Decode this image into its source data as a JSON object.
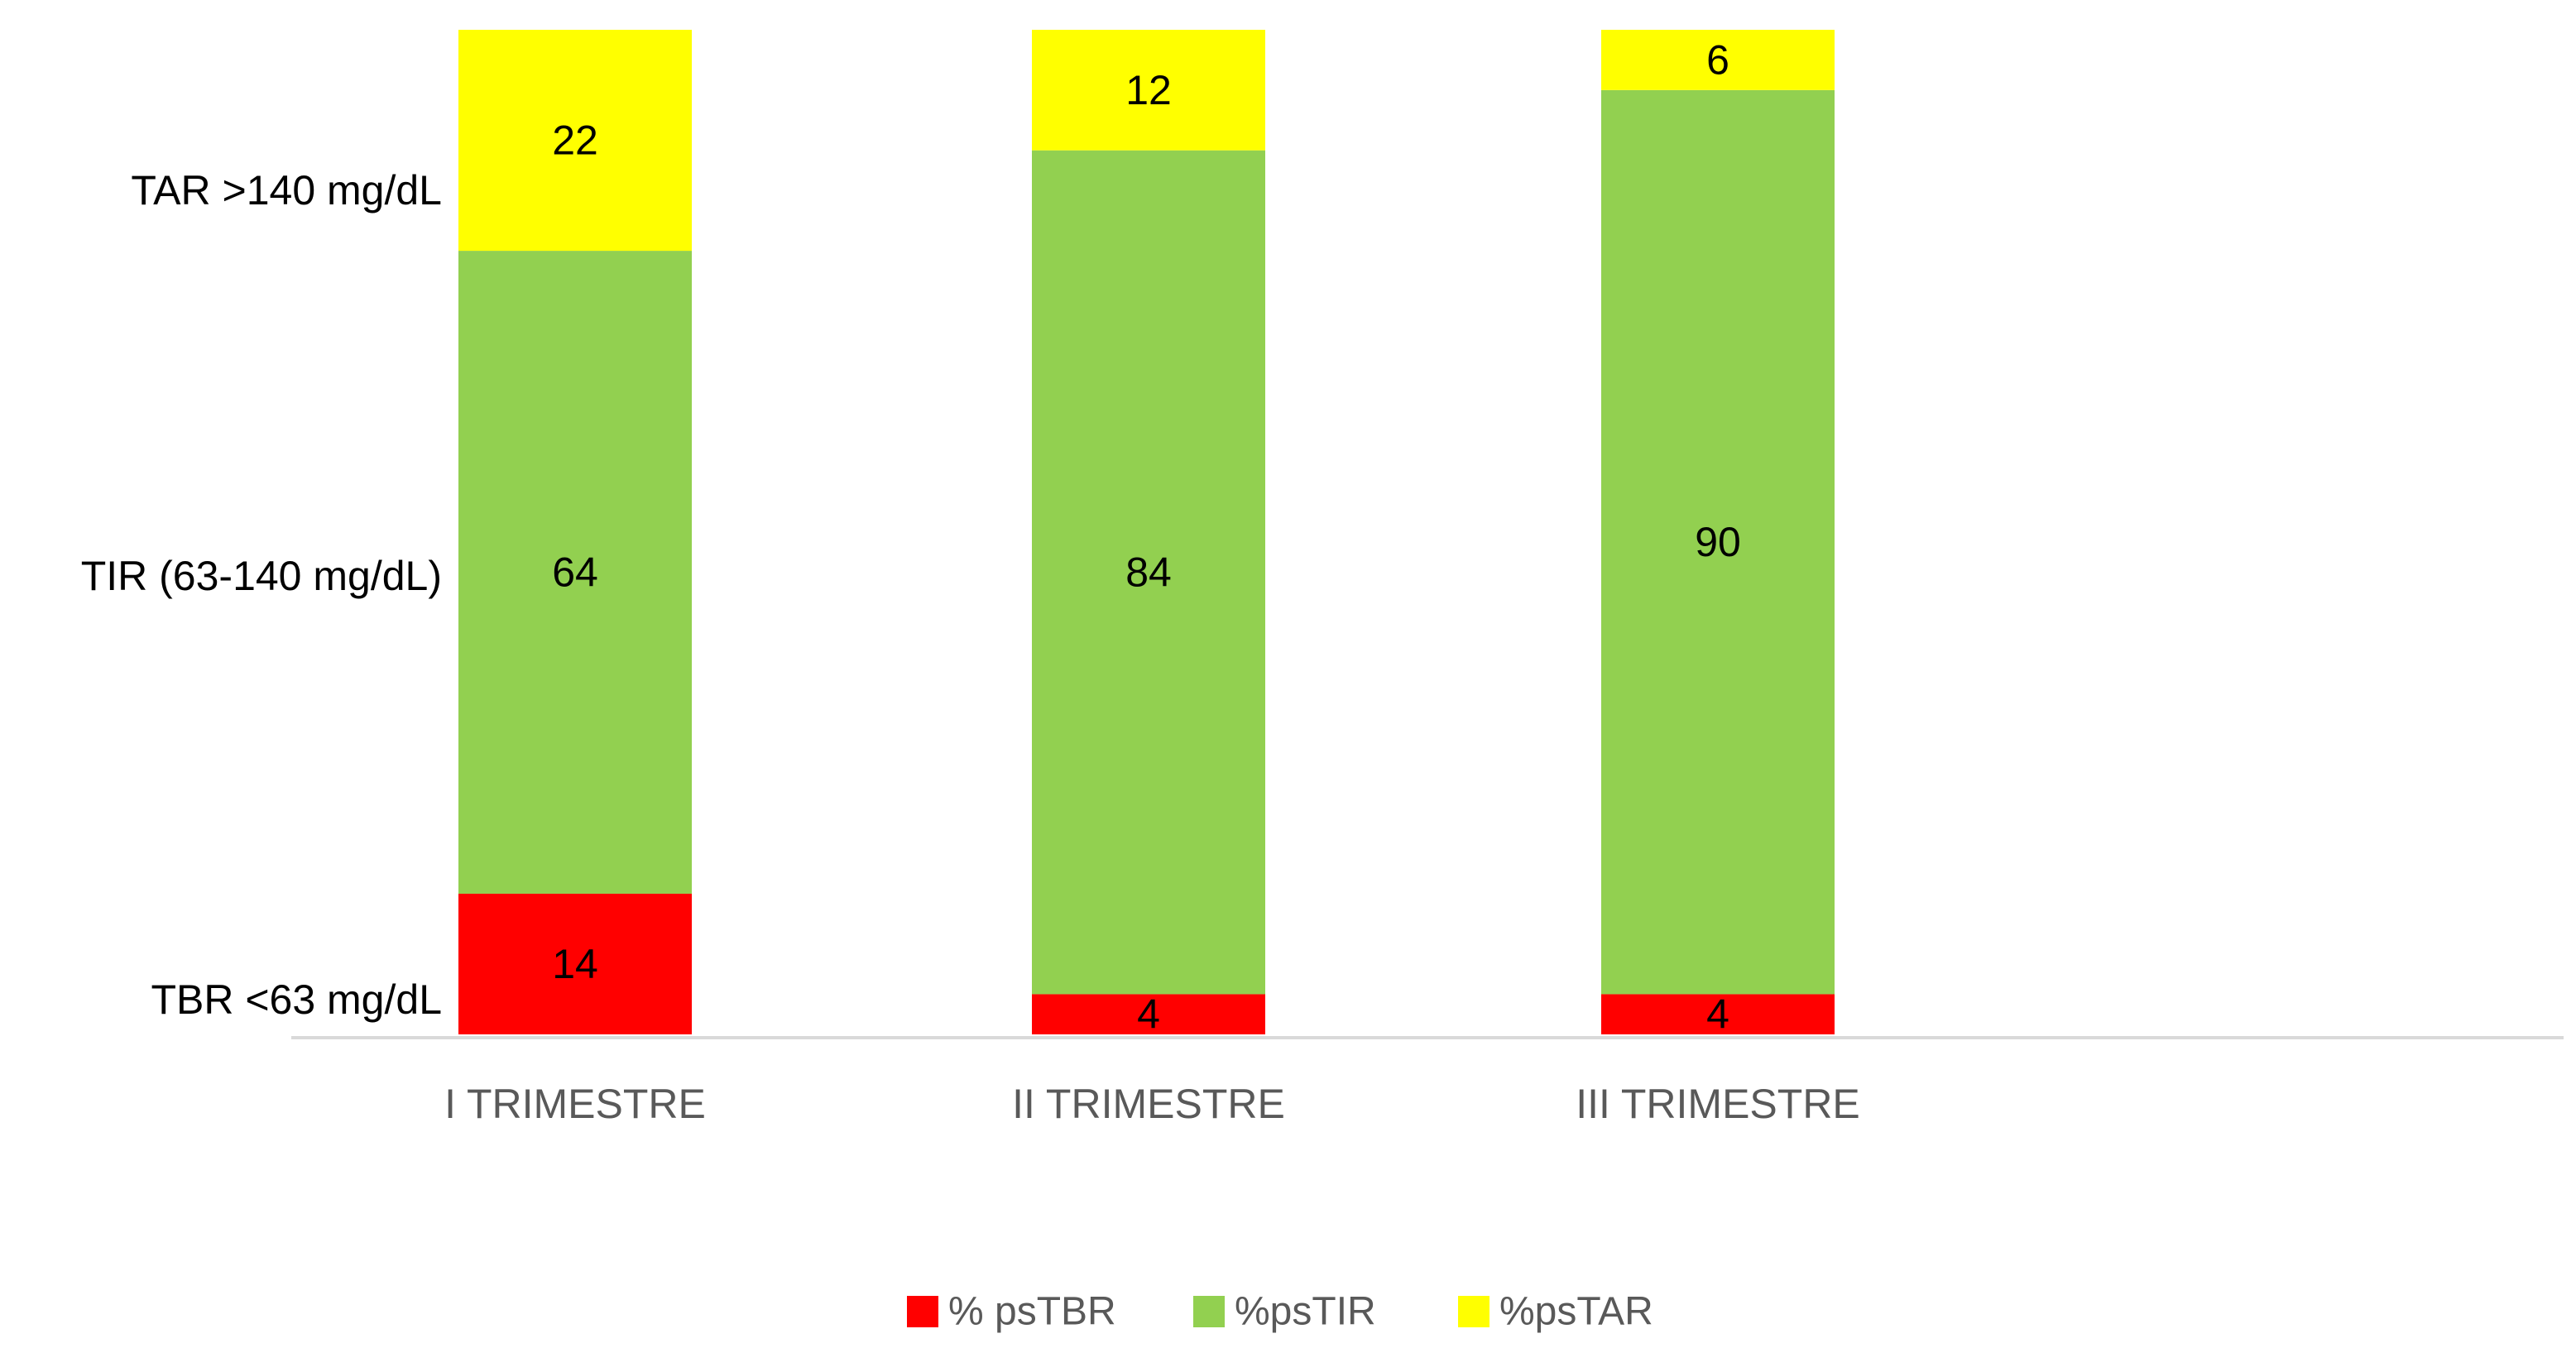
{
  "chart_data": {
    "type": "bar",
    "stacked": true,
    "normalized_percent": true,
    "categories": [
      "I TRIMESTRE",
      "II TRIMESTRE",
      "III TRIMESTRE"
    ],
    "series": [
      {
        "name": "% psTBR",
        "color": "#ff0000",
        "values": [
          14,
          4,
          4
        ]
      },
      {
        "name": "%psTIR",
        "color": "#92d050",
        "values": [
          64,
          84,
          90
        ]
      },
      {
        "name": "%psTAR",
        "color": "#ffff00",
        "values": [
          22,
          12,
          6
        ]
      }
    ],
    "y_category_labels": [
      "TBR <63 mg/dL",
      "TIR (63-140 mg/dL)",
      "TAR >140 mg/dL"
    ],
    "title": "",
    "xlabel": "",
    "ylabel": "",
    "ylim": [
      0,
      100
    ],
    "grid": false,
    "legend_position": "bottom-center",
    "axis_color": "#d9d9d9",
    "label_color": "#595959",
    "value_label_color": "#000000"
  }
}
